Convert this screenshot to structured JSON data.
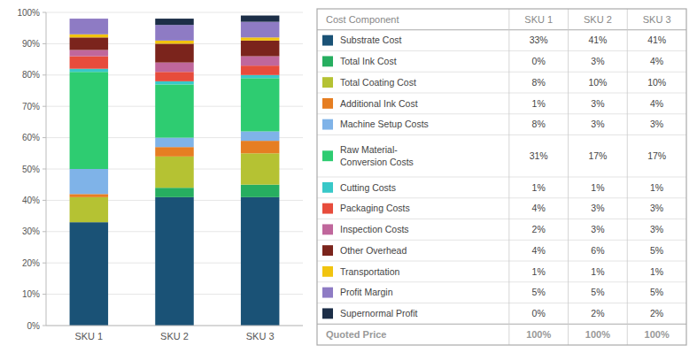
{
  "chart_data": {
    "type": "bar",
    "stacked": true,
    "grid": true,
    "data_labels": true,
    "categories": [
      "SKU 1",
      "SKU 2",
      "SKU 3"
    ],
    "series": [
      {
        "name": "Substrate Cost",
        "color": "#1a5276",
        "values": [
          33,
          41,
          41
        ],
        "value_labels": [
          "33%",
          "41%",
          "41%"
        ]
      },
      {
        "name": "Total Ink Cost",
        "color": "#27ae60",
        "values": [
          0,
          3,
          4
        ],
        "value_labels": [
          "0%",
          "3%",
          "4%"
        ]
      },
      {
        "name": "Total Coating Cost",
        "color": "#b5c233",
        "values": [
          8,
          10,
          10
        ],
        "value_labels": [
          "8%",
          "10%",
          "10%"
        ]
      },
      {
        "name": "Additional Ink Cost",
        "color": "#e67e22",
        "values": [
          1,
          3,
          4
        ],
        "value_labels": [
          "1%",
          "3%",
          "4%"
        ]
      },
      {
        "name": "Machine Setup Costs",
        "color": "#7fb3e8",
        "values": [
          8,
          3,
          3
        ],
        "value_labels": [
          "8%",
          "3%",
          "3%"
        ]
      },
      {
        "name": "Raw Material-\nConversion Costs",
        "color": "#2ecc71",
        "values": [
          31,
          17,
          17
        ],
        "value_labels": [
          "31%",
          "17%",
          "17%"
        ]
      },
      {
        "name": "Cutting Costs",
        "color": "#38c8c8",
        "values": [
          1,
          1,
          1
        ],
        "value_labels": [
          "1%",
          "1%",
          "1%"
        ]
      },
      {
        "name": "Packaging Costs",
        "color": "#e74c3c",
        "values": [
          4,
          3,
          3
        ],
        "value_labels": [
          "4%",
          "3%",
          "3%"
        ]
      },
      {
        "name": "Inspection Costs",
        "color": "#c0679c",
        "values": [
          2,
          3,
          3
        ],
        "value_labels": [
          "2%",
          "3%",
          "3%"
        ]
      },
      {
        "name": "Other Overhead",
        "color": "#7b241c",
        "values": [
          4,
          6,
          5
        ],
        "value_labels": [
          "4%",
          "6%",
          "5%"
        ]
      },
      {
        "name": "Transportation",
        "color": "#f1c40f",
        "values": [
          1,
          1,
          1
        ],
        "value_labels": [
          "1%",
          "1%",
          "1%"
        ]
      },
      {
        "name": "Profit Margin",
        "color": "#8e7bc4",
        "values": [
          5,
          5,
          5
        ],
        "value_labels": [
          "5%",
          "5%",
          "5%"
        ]
      },
      {
        "name": "Supernormal Profit",
        "color": "#1c2e47",
        "values": [
          0,
          2,
          2
        ],
        "value_labels": [
          "0%",
          "2%",
          "2%"
        ]
      }
    ],
    "ylim": [
      0,
      100
    ],
    "yticks": [
      {
        "value": 0,
        "label": "0%"
      },
      {
        "value": 10,
        "label": "10%"
      },
      {
        "value": 20,
        "label": "20%"
      },
      {
        "value": 30,
        "label": "30%"
      },
      {
        "value": 40,
        "label": "40%"
      },
      {
        "value": 50,
        "label": "50%"
      },
      {
        "value": 60,
        "label": "60%"
      },
      {
        "value": 70,
        "label": "70%"
      },
      {
        "value": 80,
        "label": "80%"
      },
      {
        "value": 90,
        "label": "90%"
      },
      {
        "value": 100,
        "label": "100%"
      }
    ],
    "annotations": [
      "Cost Component",
      "Quoted Price",
      "100%",
      "100%",
      "100%"
    ]
  }
}
